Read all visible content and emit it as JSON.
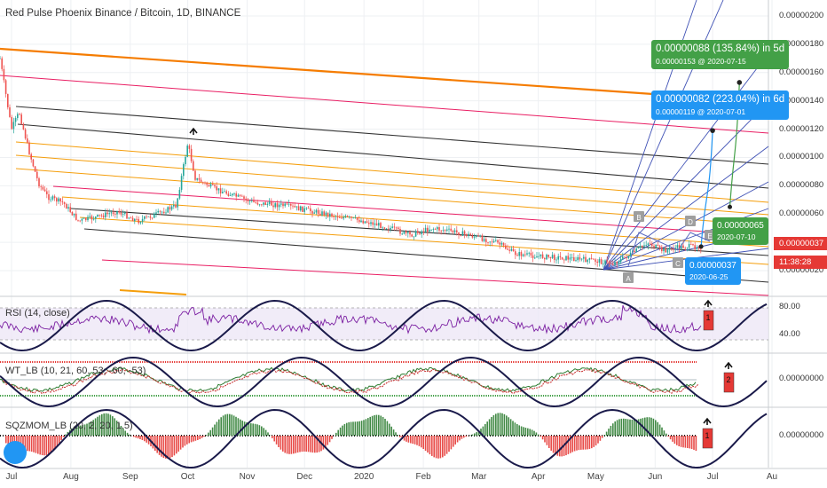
{
  "header": {
    "title": "Red Pulse Phoenix Binance / Bitcoin, 1D, BINANCE"
  },
  "axes": {
    "price_ticks": [
      "0.00000200",
      "0.00000180",
      "0.00000160",
      "0.00000140",
      "0.00000120",
      "0.00000100",
      "0.00000080",
      "0.00000060",
      "0.00000040",
      "0.00000020"
    ],
    "rsi_ticks": [
      "80.00",
      "40.00"
    ],
    "wt_tick": "0.00000000",
    "sqz_tick": "0.00000000",
    "x_labels": [
      "Jul",
      "Aug",
      "Sep",
      "Oct",
      "Nov",
      "Dec",
      "2020",
      "Feb",
      "Mar",
      "Apr",
      "May",
      "Jun",
      "Jul",
      "Au"
    ]
  },
  "indicators": {
    "rsi": "RSI (14, close)",
    "wt": "WT_LB (10, 21, 60, 53, -60, -53)",
    "sqz": "SQZMOM_LB (20, 2, 20, 1.5)"
  },
  "price_badges": {
    "current_price": "0.00000037",
    "countdown": "11:38:28",
    "current_color": "#e53935",
    "countdown_color": "#e53935"
  },
  "callouts": {
    "green_top": {
      "line1": "0.00000088 (135.84%) in 5d",
      "line2": "0.00000153 @ 2020-07-15",
      "color": "#43a047"
    },
    "blue_top": {
      "line1": "0.00000082 (223.04%) in 6d",
      "line2": "0.00000119 @ 2020-07-01",
      "color": "#2196f3"
    },
    "green_bottom": {
      "line1": "0.00000065",
      "line2": "2020-07-10",
      "color": "#43a047"
    },
    "blue_bottom": {
      "line1": "0.00000037",
      "line2": "2020-06-25",
      "color": "#2196f3"
    }
  },
  "pattern_labels": [
    "A",
    "B",
    "C",
    "D",
    "E"
  ],
  "signal_labels": {
    "rsi": "1",
    "wt": "2",
    "sqz": "1"
  },
  "chart_data": {
    "type": "line",
    "title": "Red Pulse Phoenix Binance / Bitcoin, 1D, BINANCE",
    "x_range": [
      "2019-06-25",
      "2020-08-01"
    ],
    "y_range": [
      1e-07,
      2.05e-06
    ],
    "price_series": [
      [
        "2019-06-25",
        1.7e-06
      ],
      [
        "2019-07-01",
        1.2e-06
      ],
      [
        "2019-07-05",
        1.32e-06
      ],
      [
        "2019-07-10",
        1.05e-06
      ],
      [
        "2019-07-15",
        8.2e-07
      ],
      [
        "2019-07-20",
        7.2e-07
      ],
      [
        "2019-07-28",
        6.8e-07
      ],
      [
        "2019-08-05",
        5.5e-07
      ],
      [
        "2019-08-15",
        5.8e-07
      ],
      [
        "2019-08-25",
        6.2e-07
      ],
      [
        "2019-09-05",
        5.5e-07
      ],
      [
        "2019-09-15",
        6e-07
      ],
      [
        "2019-09-25",
        6.6e-07
      ],
      [
        "2019-10-01",
        1.1e-06
      ],
      [
        "2019-10-05",
        8.5e-07
      ],
      [
        "2019-10-15",
        7.8e-07
      ],
      [
        "2019-10-25",
        7.3e-07
      ],
      [
        "2019-11-05",
        6.8e-07
      ],
      [
        "2019-11-20",
        6.6e-07
      ],
      [
        "2019-12-05",
        6.2e-07
      ],
      [
        "2019-12-20",
        5.8e-07
      ],
      [
        "2020-01-01",
        5.5e-07
      ],
      [
        "2020-01-15",
        5e-07
      ],
      [
        "2020-01-25",
        4.5e-07
      ],
      [
        "2020-02-05",
        5e-07
      ],
      [
        "2020-02-15",
        4.8e-07
      ],
      [
        "2020-02-25",
        4.5e-07
      ],
      [
        "2020-03-10",
        4e-07
      ],
      [
        "2020-03-20",
        3.2e-07
      ],
      [
        "2020-04-01",
        3e-07
      ],
      [
        "2020-04-15",
        2.9e-07
      ],
      [
        "2020-05-01",
        2.7e-07
      ],
      [
        "2020-05-10",
        2.5e-07
      ],
      [
        "2020-05-20",
        3.2e-07
      ],
      [
        "2020-05-28",
        4e-07
      ],
      [
        "2020-06-05",
        3.4e-07
      ],
      [
        "2020-06-15",
        3.7e-07
      ],
      [
        "2020-06-25",
        3.7e-07
      ]
    ],
    "projections": [
      {
        "from": [
          "2020-06-25",
          3.7e-07
        ],
        "to": [
          "2020-07-01",
          1.19e-06
        ],
        "change": "0.00000082 (223.04%) in 6d"
      },
      {
        "from": [
          "2020-07-10",
          6.5e-07
        ],
        "to": [
          "2020-07-15",
          1.53e-06
        ],
        "change": "0.00000088 (135.84%) in 5d"
      }
    ],
    "grid": true,
    "legend": "none"
  }
}
